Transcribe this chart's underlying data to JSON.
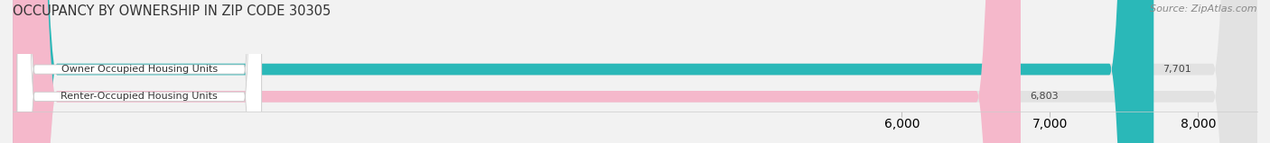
{
  "title": "OCCUPANCY BY OWNERSHIP IN ZIP CODE 30305",
  "source": "Source: ZipAtlas.com",
  "categories": [
    "Owner Occupied Housing Units",
    "Renter-Occupied Housing Units"
  ],
  "values": [
    7701,
    6803
  ],
  "bar_colors": [
    "#2ab8b8",
    "#f5b8cb"
  ],
  "value_labels": [
    "7,701",
    "6,803"
  ],
  "xlim": [
    0,
    8400
  ],
  "xticks": [
    6000,
    7000,
    8000
  ],
  "xtick_labels": [
    "6,000",
    "7,000",
    "8,000"
  ],
  "bar_height": 0.42,
  "title_fontsize": 10.5,
  "label_fontsize": 8,
  "value_fontsize": 8,
  "tick_fontsize": 8,
  "source_fontsize": 8,
  "background_color": "#f2f2f2",
  "bar_background_color": "#e2e2e2"
}
